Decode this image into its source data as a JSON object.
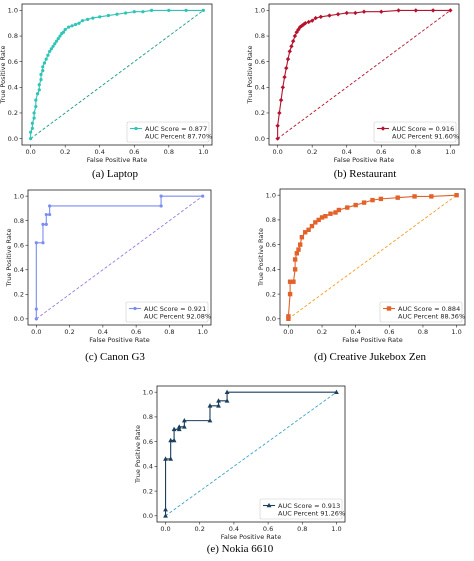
{
  "chart_data": [
    {
      "type": "line",
      "caption": "(a) Laptop",
      "xlabel": "False Positive Rate",
      "ylabel": "True Positive Rate",
      "xlim": [
        0,
        1
      ],
      "ylim": [
        0,
        1
      ],
      "xticks": [
        "0.0",
        "0.2",
        "0.4",
        "0.6",
        "0.8",
        "1.0"
      ],
      "yticks": [
        "0.0",
        "0.2",
        "0.4",
        "0.6",
        "0.8",
        "1.0"
      ],
      "color": "#2ec4b6",
      "diag_color": "#1a9a8a",
      "marker": "dot",
      "legend_loc": "lower-right",
      "legend": [
        "AUC Score = 0.877",
        "AUC Percent 87.70%"
      ],
      "series": [
        {
          "x": [
            0.0,
            0.0,
            0.01,
            0.01,
            0.02,
            0.02,
            0.03,
            0.03,
            0.04,
            0.05,
            0.05,
            0.06,
            0.06,
            0.07,
            0.07,
            0.08,
            0.09,
            0.1,
            0.11,
            0.12,
            0.13,
            0.14,
            0.15,
            0.16,
            0.17,
            0.18,
            0.19,
            0.2,
            0.22,
            0.24,
            0.26,
            0.28,
            0.3,
            0.33,
            0.36,
            0.4,
            0.45,
            0.5,
            0.55,
            0.6,
            0.65,
            0.7,
            0.8,
            0.9,
            1.0
          ],
          "y": [
            0.0,
            0.05,
            0.08,
            0.12,
            0.16,
            0.2,
            0.25,
            0.3,
            0.35,
            0.38,
            0.42,
            0.46,
            0.5,
            0.53,
            0.56,
            0.59,
            0.62,
            0.65,
            0.68,
            0.7,
            0.72,
            0.74,
            0.76,
            0.78,
            0.8,
            0.82,
            0.83,
            0.85,
            0.87,
            0.88,
            0.89,
            0.9,
            0.92,
            0.93,
            0.94,
            0.95,
            0.96,
            0.97,
            0.98,
            0.99,
            0.99,
            1.0,
            1.0,
            1.0,
            1.0
          ]
        }
      ]
    },
    {
      "type": "line",
      "caption": "(b) Restaurant",
      "xlabel": "False Positive Rate",
      "ylabel": "True Positive Rate",
      "xlim": [
        0,
        1
      ],
      "ylim": [
        0,
        1
      ],
      "xticks": [
        "0.0",
        "0.2",
        "0.4",
        "0.6",
        "0.8",
        "1.0"
      ],
      "yticks": [
        "0.0",
        "0.2",
        "0.4",
        "0.6",
        "0.8",
        "1.0"
      ],
      "color": "#b5122e",
      "diag_color": "#b5122e",
      "marker": "diamond",
      "legend_loc": "lower-right",
      "legend": [
        "AUC Score = 0.916",
        "AUC Percent 91.60%"
      ],
      "series": [
        {
          "x": [
            0.0,
            0.0,
            0.01,
            0.02,
            0.03,
            0.04,
            0.05,
            0.06,
            0.07,
            0.08,
            0.09,
            0.1,
            0.11,
            0.12,
            0.13,
            0.14,
            0.15,
            0.16,
            0.18,
            0.2,
            0.22,
            0.25,
            0.3,
            0.35,
            0.4,
            0.45,
            0.5,
            0.6,
            0.7,
            0.8,
            0.9,
            1.0
          ],
          "y": [
            0.0,
            0.1,
            0.2,
            0.3,
            0.4,
            0.48,
            0.55,
            0.62,
            0.68,
            0.72,
            0.76,
            0.8,
            0.83,
            0.85,
            0.87,
            0.88,
            0.89,
            0.9,
            0.91,
            0.92,
            0.94,
            0.95,
            0.96,
            0.97,
            0.98,
            0.98,
            0.99,
            0.99,
            1.0,
            1.0,
            1.0,
            1.0
          ]
        }
      ]
    },
    {
      "type": "line",
      "caption": "(c) Canon G3",
      "xlabel": "False Positive Rate",
      "ylabel": "True Positive Rate",
      "xlim": [
        0,
        1
      ],
      "ylim": [
        0,
        1
      ],
      "xticks": [
        "0.0",
        "0.2",
        "0.4",
        "0.6",
        "0.8",
        "1.0"
      ],
      "yticks": [
        "0.0",
        "0.2",
        "0.4",
        "0.6",
        "0.8",
        "1.0"
      ],
      "color": "#7a8ef0",
      "diag_color": "#9a7ae0",
      "marker": "dot",
      "legend_loc": "lower-right",
      "legend": [
        "AUC Score = 0.921",
        "AUC Percent 92.08%"
      ],
      "series": [
        {
          "x": [
            0.0,
            0.0,
            0.0,
            0.04,
            0.04,
            0.06,
            0.06,
            0.08,
            0.08,
            0.75,
            0.75,
            1.0
          ],
          "y": [
            0.0,
            0.08,
            0.62,
            0.62,
            0.77,
            0.77,
            0.85,
            0.85,
            0.92,
            0.92,
            1.0,
            1.0
          ]
        }
      ]
    },
    {
      "type": "line",
      "caption": "(d) Creative Jukebox Zen",
      "xlabel": "False Positive Rate",
      "ylabel": "True Positive Rate",
      "xlim": [
        0,
        1
      ],
      "ylim": [
        0,
        1
      ],
      "xticks": [
        "0.0",
        "0.2",
        "0.4",
        "0.6",
        "0.8",
        "1.0"
      ],
      "yticks": [
        "0.0",
        "0.2",
        "0.4",
        "0.6",
        "0.8",
        "1.0"
      ],
      "color": "#e2622a",
      "diag_color": "#f0a020",
      "marker": "square",
      "legend_loc": "lower-right",
      "legend": [
        "AUC Score = 0.884",
        "AUC Percent 88.36%"
      ],
      "series": [
        {
          "x": [
            0.0,
            0.0,
            0.01,
            0.01,
            0.03,
            0.04,
            0.04,
            0.05,
            0.06,
            0.07,
            0.08,
            0.1,
            0.12,
            0.14,
            0.16,
            0.18,
            0.2,
            0.22,
            0.25,
            0.28,
            0.3,
            0.35,
            0.4,
            0.45,
            0.5,
            0.55,
            0.65,
            0.75,
            0.85,
            1.0
          ],
          "y": [
            0.0,
            0.02,
            0.2,
            0.3,
            0.3,
            0.4,
            0.48,
            0.53,
            0.56,
            0.6,
            0.66,
            0.7,
            0.72,
            0.75,
            0.78,
            0.8,
            0.82,
            0.83,
            0.85,
            0.86,
            0.88,
            0.9,
            0.92,
            0.94,
            0.96,
            0.97,
            0.98,
            0.99,
            0.99,
            1.0
          ]
        }
      ]
    },
    {
      "type": "line",
      "caption": "(e) Nokia 6610",
      "xlabel": "False Positive Rate",
      "ylabel": "True Positive Rate",
      "xlim": [
        0,
        1
      ],
      "ylim": [
        0,
        1
      ],
      "xticks": [
        "0.0",
        "0.2",
        "0.4",
        "0.6",
        "0.8",
        "1.0"
      ],
      "yticks": [
        "0.0",
        "0.2",
        "0.4",
        "0.6",
        "0.8",
        "1.0"
      ],
      "color": "#1b3f5c",
      "diag_color": "#3aa6c8",
      "marker": "triangle",
      "legend_loc": "lower-right",
      "legend": [
        "AUC Score = 0.913",
        "AUC Percent 91.26%"
      ],
      "series": [
        {
          "x": [
            0.0,
            0.0,
            0.0,
            0.03,
            0.03,
            0.05,
            0.05,
            0.08,
            0.08,
            0.11,
            0.11,
            0.26,
            0.26,
            0.31,
            0.31,
            0.36,
            0.36,
            1.0
          ],
          "y": [
            0.0,
            0.05,
            0.46,
            0.46,
            0.61,
            0.61,
            0.7,
            0.7,
            0.72,
            0.72,
            0.77,
            0.77,
            0.89,
            0.89,
            0.93,
            0.93,
            1.0,
            1.0
          ]
        }
      ]
    }
  ]
}
